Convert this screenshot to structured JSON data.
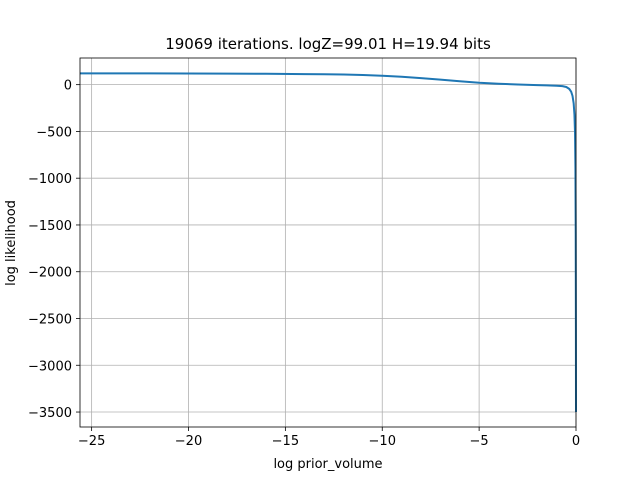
{
  "chart_data": {
    "type": "line",
    "title": "19069 iterations. logZ=99.01 H=19.94 bits",
    "xlabel": "log prior_volume",
    "ylabel": "log likelihood",
    "xlim": [
      -25.6,
      0.0
    ],
    "ylim": [
      -3660,
      285
    ],
    "grid": true,
    "x_ticks": [
      -25,
      -20,
      -15,
      -10,
      -5,
      0
    ],
    "x_tick_labels": [
      "−25",
      "−20",
      "−15",
      "−10",
      "−5",
      "0"
    ],
    "y_ticks": [
      0,
      -500,
      -1000,
      -1500,
      -2000,
      -2500,
      -3000,
      -3500
    ],
    "y_tick_labels": [
      "0",
      "−500",
      "−1000",
      "−1500",
      "−2000",
      "−2500",
      "−3000",
      "−3500"
    ],
    "series": [
      {
        "color": "#1f77b4",
        "x": [
          -25.6,
          -22,
          -20,
          -18,
          -16,
          -14,
          -13,
          -12,
          -11,
          -10,
          -9,
          -8,
          -7,
          -6,
          -5,
          -4,
          -3,
          -2,
          -1.5,
          -1,
          -0.7,
          -0.5,
          -0.35,
          -0.25,
          -0.18,
          -0.12,
          -0.08,
          -0.05,
          -0.03,
          -0.015,
          -0.005,
          0
        ],
        "y": [
          120,
          120,
          119,
          118,
          116,
          113,
          111,
          108,
          103,
          95,
          84,
          70,
          54,
          37,
          20,
          10,
          2,
          -5,
          -8,
          -12,
          -16,
          -25,
          -45,
          -75,
          -120,
          -200,
          -320,
          -520,
          -900,
          -1600,
          -2600,
          -3500
        ]
      }
    ]
  }
}
